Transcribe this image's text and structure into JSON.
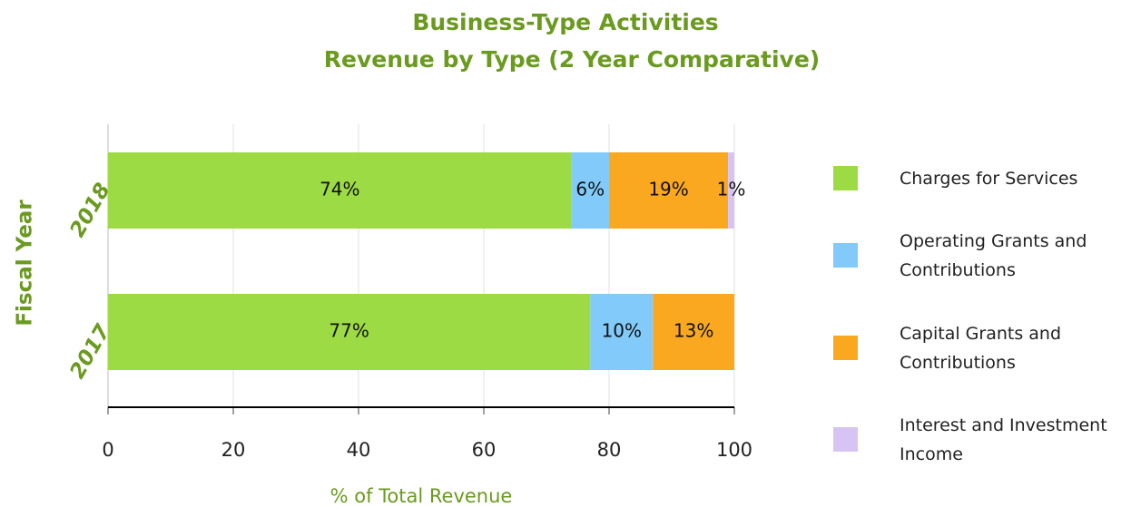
{
  "chart_data": {
    "type": "stacked_bar_horizontal",
    "title": [
      "Business-Type Activities",
      "Revenue by Type (2 Year Comparative)"
    ],
    "x_label": "% of Total Revenue",
    "y_label": "Fiscal Year",
    "categories": [
      "2018",
      "2017"
    ],
    "series": [
      {
        "name": "Charges for Services",
        "color": "#9ddb45",
        "values": [
          74,
          77
        ],
        "value_labels": [
          "74%",
          "77%"
        ]
      },
      {
        "name": "Operating Grants and Contributions",
        "color": "#81caf9",
        "values": [
          6,
          10
        ],
        "value_labels": [
          "6%",
          "10%"
        ]
      },
      {
        "name": "Capital Grants and Contributions",
        "color": "#f9a81f",
        "values": [
          19,
          13
        ],
        "value_labels": [
          "19%",
          "13%"
        ]
      },
      {
        "name": "Interest and Investment Income",
        "color": "#d7c4f4",
        "values": [
          1,
          0
        ],
        "value_labels": [
          "1%",
          null
        ]
      }
    ],
    "xlim": [
      0,
      100
    ],
    "xticks": [
      0,
      20,
      40,
      60,
      80,
      100
    ],
    "grid": true,
    "legend": "right"
  }
}
